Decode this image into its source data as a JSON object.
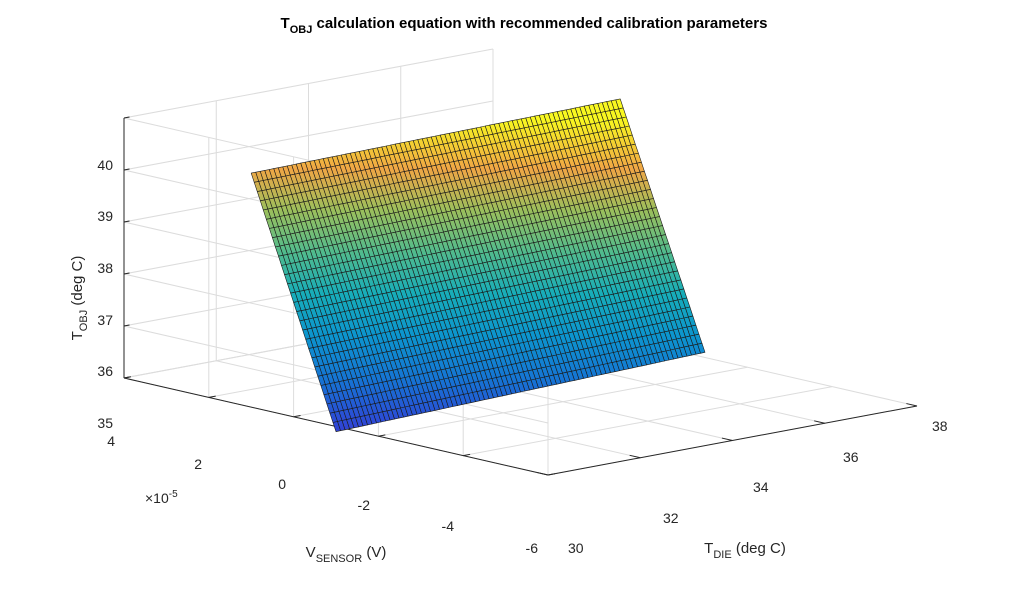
{
  "chart_data": {
    "type": "surface",
    "title": {
      "main": "T",
      "sub": "OBJ",
      "rest": " calculation equation with recommended calibration parameters"
    },
    "xlabel": {
      "main": "T",
      "sub": "DIE",
      "rest": " (deg C)"
    },
    "ylabel": {
      "main": "V",
      "sub": "SENSOR",
      "rest": " (V)"
    },
    "zlabel": {
      "main": "T",
      "sub": "OBJ",
      "rest": " (deg C)"
    },
    "y_exponent": {
      "prefix": "×10",
      "power": "-5"
    },
    "xlim": [
      30,
      38
    ],
    "ylim": [
      -6,
      4
    ],
    "zlim": [
      35,
      40
    ],
    "x_ticks": [
      "30",
      "32",
      "34",
      "36",
      "38"
    ],
    "y_ticks": [
      "4",
      "2",
      "0",
      "-2",
      "-4",
      "-6"
    ],
    "z_ticks": [
      "35",
      "36",
      "37",
      "38",
      "39",
      "40"
    ],
    "surface": {
      "x_range": [
        30,
        38
      ],
      "y_range": [
        -1,
        1
      ],
      "corners": [
        {
          "x": 30,
          "y": 1,
          "z": 39.5
        },
        {
          "x": 38,
          "y": 1,
          "z": 39.6
        },
        {
          "x": 30,
          "y": -1,
          "z": 34.9
        },
        {
          "x": 38,
          "y": -1,
          "z": 35.1
        }
      ]
    },
    "colormap": "parula",
    "grid": true
  }
}
